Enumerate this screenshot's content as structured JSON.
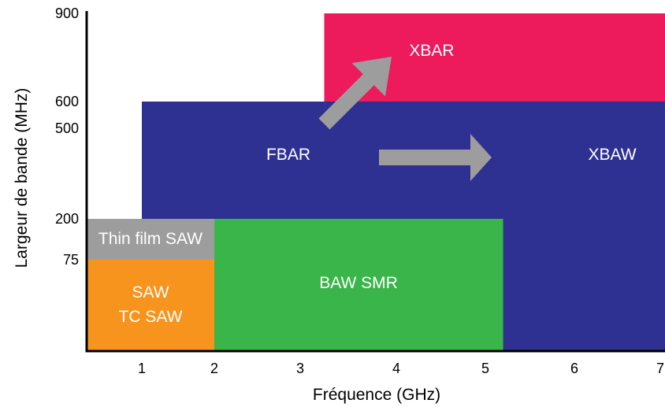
{
  "chart_data": {
    "type": "area",
    "title": "",
    "xlabel": "Fréquence (GHz)",
    "ylabel": "Largeur de bande (MHz)",
    "x_ticks": [
      "1",
      "2",
      "3",
      "4",
      "5",
      "6",
      "7"
    ],
    "y_ticks": [
      "900",
      "600",
      "500",
      "200",
      "75"
    ],
    "regions": [
      {
        "name": "FBAR",
        "x": [
          1.0,
          7.0
        ],
        "y_band": [
          0,
          600
        ],
        "color": "#2e3192"
      },
      {
        "name": "XBAR",
        "x": [
          3.25,
          7.0
        ],
        "y_band": [
          600,
          900
        ],
        "color": "#ed1a5c"
      },
      {
        "name": "Thin film SAW",
        "x": [
          0.4,
          2.0
        ],
        "y_band": [
          75,
          200
        ],
        "color": "#9d9d9d"
      },
      {
        "name": "SAW",
        "extra_label": "TC SAW",
        "x": [
          0.4,
          2.0
        ],
        "y_band": [
          0,
          75
        ],
        "color": "#f7941d"
      },
      {
        "name": "BAW SMR",
        "x": [
          2.0,
          5.2
        ],
        "y_band": [
          0,
          200
        ],
        "color": "#3ab54a"
      },
      {
        "name": "XBAW",
        "x": [
          5.2,
          7.0
        ],
        "y_band": [
          200,
          600
        ],
        "color": "#2e3192"
      }
    ],
    "arrows": [
      {
        "from": "FBAR",
        "to": "XBAR",
        "direction": "up-right",
        "color": "#9d9d9d"
      },
      {
        "from": "FBAR",
        "to": "XBAW",
        "direction": "right",
        "color": "#9d9d9d"
      }
    ]
  }
}
